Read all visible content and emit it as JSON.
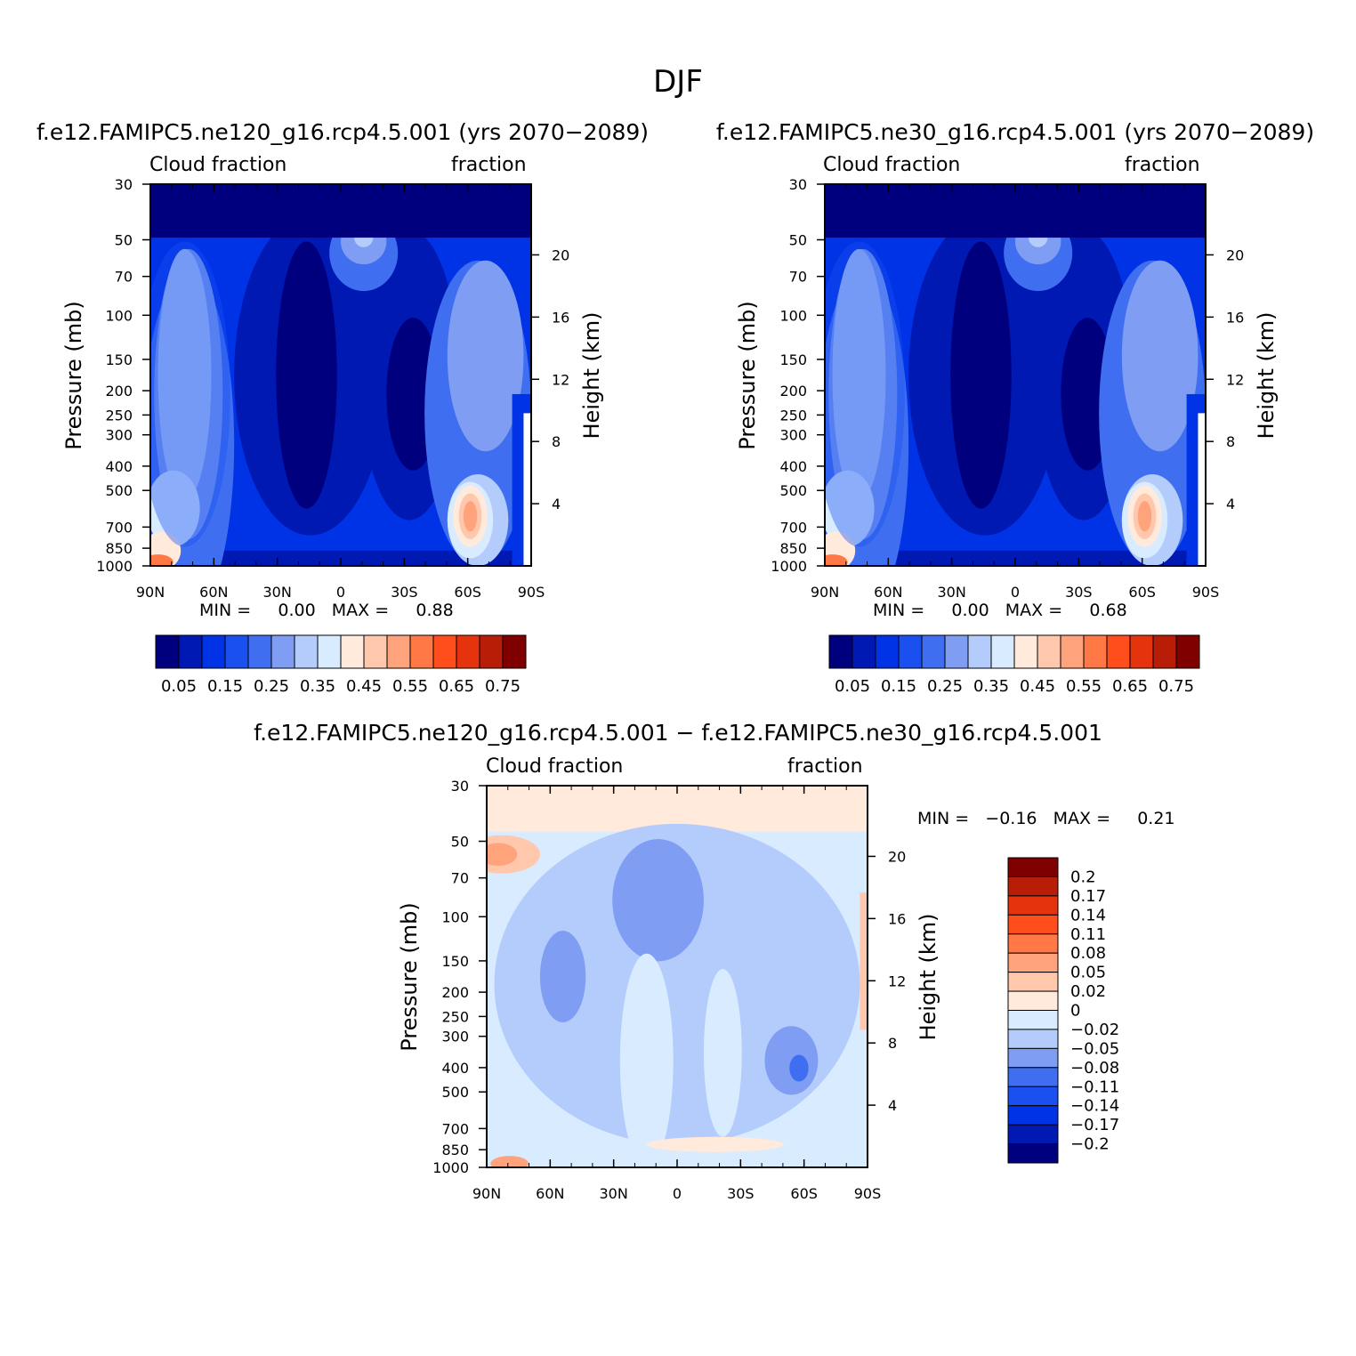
{
  "title": "DJF",
  "chart_data": [
    {
      "type": "heatmap",
      "title": "f.e12.FAMIPC5.ne120_g16.rcp4.5.001 (yrs 2070−2089)",
      "left_label": "Cloud fraction",
      "right_label": "fraction",
      "ylabel": "Pressure (mb)",
      "ylabel_right": "Height (km)",
      "x_ticks": [
        "90N",
        "60N",
        "30N",
        "0",
        "30S",
        "60S",
        "90S"
      ],
      "y_ticks": [
        "30",
        "50",
        "70",
        "100",
        "150",
        "200",
        "250",
        "300",
        "400",
        "500",
        "700",
        "850",
        "1000"
      ],
      "y_right_ticks": [
        "20",
        "16",
        "12",
        "8",
        "4"
      ],
      "stats": "MIN =     0.00   MAX =     0.88",
      "colorbar_labels": [
        "0.05",
        "0.15",
        "0.25",
        "0.35",
        "0.45",
        "0.55",
        "0.65",
        "0.75"
      ],
      "levels": [
        0.05,
        0.1,
        0.15,
        0.2,
        0.25,
        0.3,
        0.35,
        0.4,
        0.45,
        0.5,
        0.55,
        0.6,
        0.65,
        0.7,
        0.75
      ],
      "min": 0.0,
      "max": 0.88
    },
    {
      "type": "heatmap",
      "title": "f.e12.FAMIPC5.ne30_g16.rcp4.5.001 (yrs 2070−2089)",
      "left_label": "Cloud fraction",
      "right_label": "fraction",
      "ylabel": "Pressure (mb)",
      "ylabel_right": "Height (km)",
      "x_ticks": [
        "90N",
        "60N",
        "30N",
        "0",
        "30S",
        "60S",
        "90S"
      ],
      "y_ticks": [
        "30",
        "50",
        "70",
        "100",
        "150",
        "200",
        "250",
        "300",
        "400",
        "500",
        "700",
        "850",
        "1000"
      ],
      "y_right_ticks": [
        "20",
        "16",
        "12",
        "8",
        "4"
      ],
      "stats": "MIN =     0.00   MAX =     0.68",
      "colorbar_labels": [
        "0.05",
        "0.15",
        "0.25",
        "0.35",
        "0.45",
        "0.55",
        "0.65",
        "0.75"
      ],
      "levels": [
        0.05,
        0.1,
        0.15,
        0.2,
        0.25,
        0.3,
        0.35,
        0.4,
        0.45,
        0.5,
        0.55,
        0.6,
        0.65,
        0.7,
        0.75
      ],
      "min": 0.0,
      "max": 0.68
    },
    {
      "type": "heatmap",
      "title": "f.e12.FAMIPC5.ne120_g16.rcp4.5.001 − f.e12.FAMIPC5.ne30_g16.rcp4.5.001",
      "left_label": "Cloud fraction",
      "right_label": "fraction",
      "ylabel": "Pressure (mb)",
      "ylabel_right": "Height (km)",
      "x_ticks": [
        "90N",
        "60N",
        "30N",
        "0",
        "30S",
        "60S",
        "90S"
      ],
      "y_ticks": [
        "30",
        "50",
        "70",
        "100",
        "150",
        "200",
        "250",
        "300",
        "400",
        "500",
        "700",
        "850",
        "1000"
      ],
      "y_right_ticks": [
        "20",
        "16",
        "12",
        "8",
        "4"
      ],
      "stats": "MIN =   −0.16   MAX =     0.21",
      "colorbar_labels": [
        "0.2",
        "0.17",
        "0.14",
        "0.11",
        "0.08",
        "0.05",
        "0.02",
        "0",
        "−0.02",
        "−0.05",
        "−0.08",
        "−0.11",
        "−0.14",
        "−0.17",
        "−0.2"
      ],
      "min": -0.16,
      "max": 0.21
    }
  ],
  "palette": [
    "#00007f",
    "#0019b3",
    "#0033e6",
    "#1a4ff0",
    "#3f6ef0",
    "#7f9ef3",
    "#b3ccfb",
    "#d9ecff",
    "#ffeadb",
    "#ffc8ac",
    "#ffa37d",
    "#ff7845",
    "#ff4d1c",
    "#e5330d",
    "#b81e07",
    "#800000"
  ]
}
